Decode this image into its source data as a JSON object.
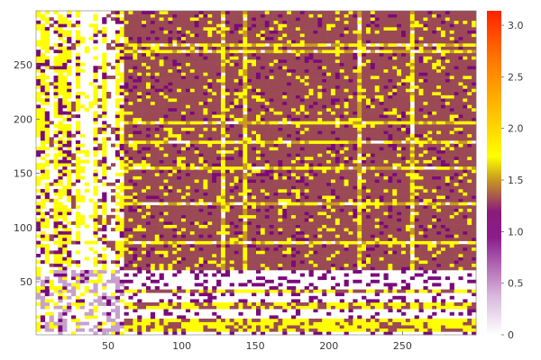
{
  "chart_data": {
    "type": "heatmap",
    "title": "",
    "xlabel": "",
    "ylabel": "",
    "xlim": [
      1,
      300
    ],
    "ylim": [
      1,
      300
    ],
    "zlim": [
      0,
      3.14
    ],
    "xticks": [
      50,
      100,
      150,
      200,
      250
    ],
    "yticks": [
      50,
      100,
      150,
      200,
      250
    ],
    "colorbar_ticks": [
      0,
      0.5,
      1.0,
      1.5,
      2.0,
      2.5,
      3.0
    ],
    "colormap": [
      "#ffffff",
      "#d9b8dd",
      "#8b1d8b",
      "#7a0a7a",
      "#9b4a55",
      "#c8a020",
      "#ffff00",
      "#ffcc00",
      "#ff9900",
      "#ff5a00",
      "#ff2200"
    ],
    "cell_size": 3,
    "structure": {
      "white_rows_below_y": 60,
      "white_cols_x": [
        30,
        60
      ],
      "dense_region": {
        "x": [
          60,
          300
        ],
        "y": [
          60,
          300
        ]
      },
      "dominant_value": 1.1
    }
  },
  "labels": {
    "x": [
      "50",
      "100",
      "150",
      "200",
      "250"
    ],
    "y": [
      "50",
      "100",
      "150",
      "200",
      "250"
    ],
    "cb": [
      "0",
      "0.5",
      "1.0",
      "1.5",
      "2.0",
      "2.5",
      "3.0"
    ]
  }
}
